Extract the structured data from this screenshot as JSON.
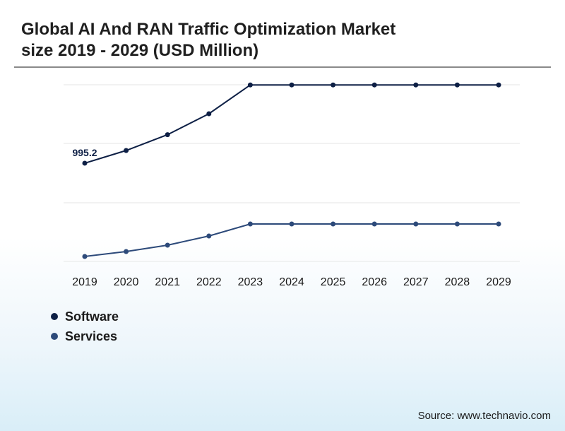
{
  "title_lines": [
    "Global AI And RAN Traffic Optimization Market",
    "size 2019 - 2029 (USD Million)"
  ],
  "source": "Source: www.technavio.com",
  "colors": {
    "software": "#0d1f45",
    "services": "#2d4a7a",
    "grid": "#e6e6e6",
    "rule": "#8a8a8a"
  },
  "chart_data": {
    "type": "line",
    "x": [
      "2019",
      "2020",
      "2021",
      "2022",
      "2023",
      "2024",
      "2025",
      "2026",
      "2027",
      "2028",
      "2029"
    ],
    "series": [
      {
        "name": "Software",
        "values": [
          995.2,
          1085,
          1197,
          1345,
          1549,
          1549,
          1549,
          1549,
          1549,
          1549,
          1549
        ],
        "data_labels": [
          "995.2",
          "",
          "",
          "",
          "",
          "",
          "",
          "",
          "",
          "",
          ""
        ]
      },
      {
        "name": "Services",
        "values": [
          335,
          370,
          415,
          480,
          565,
          565,
          565,
          565,
          565,
          565,
          565
        ],
        "data_labels": [
          "",
          "",
          "",
          "",
          "",
          "",
          "",
          "",
          "",
          "",
          ""
        ]
      }
    ],
    "ylim": [
      300,
      1550
    ],
    "grid": true,
    "legend": "bottom-left"
  }
}
